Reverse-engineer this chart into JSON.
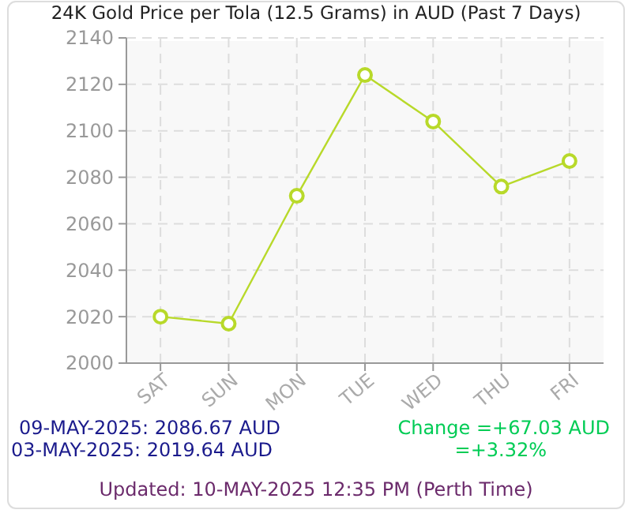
{
  "chart_data": {
    "type": "line",
    "title": "24K Gold Price per Tola (12.5 Grams) in AUD (Past 7 Days)",
    "categories": [
      "SAT",
      "SUN",
      "MON",
      "TUE",
      "WED",
      "THU",
      "FRI"
    ],
    "series": [
      {
        "color": "#b8d92a",
        "values": [
          2020,
          2017,
          2072,
          2124,
          2104,
          2076,
          2087
        ]
      }
    ],
    "ylim": [
      2000,
      2140
    ],
    "yticks": [
      2000,
      2020,
      2040,
      2060,
      2080,
      2100,
      2120,
      2140
    ],
    "grid": true,
    "marker": "circle",
    "line_style": "solid",
    "annotations": [
      "09-MAY-2025: 2086.67 AUD",
      "03-MAY-2025: 2019.64 AUD",
      "Change =+67.03 AUD",
      "=+3.32%",
      "Updated: 10-MAY-2025 12:35 PM (Perth Time)"
    ]
  }
}
